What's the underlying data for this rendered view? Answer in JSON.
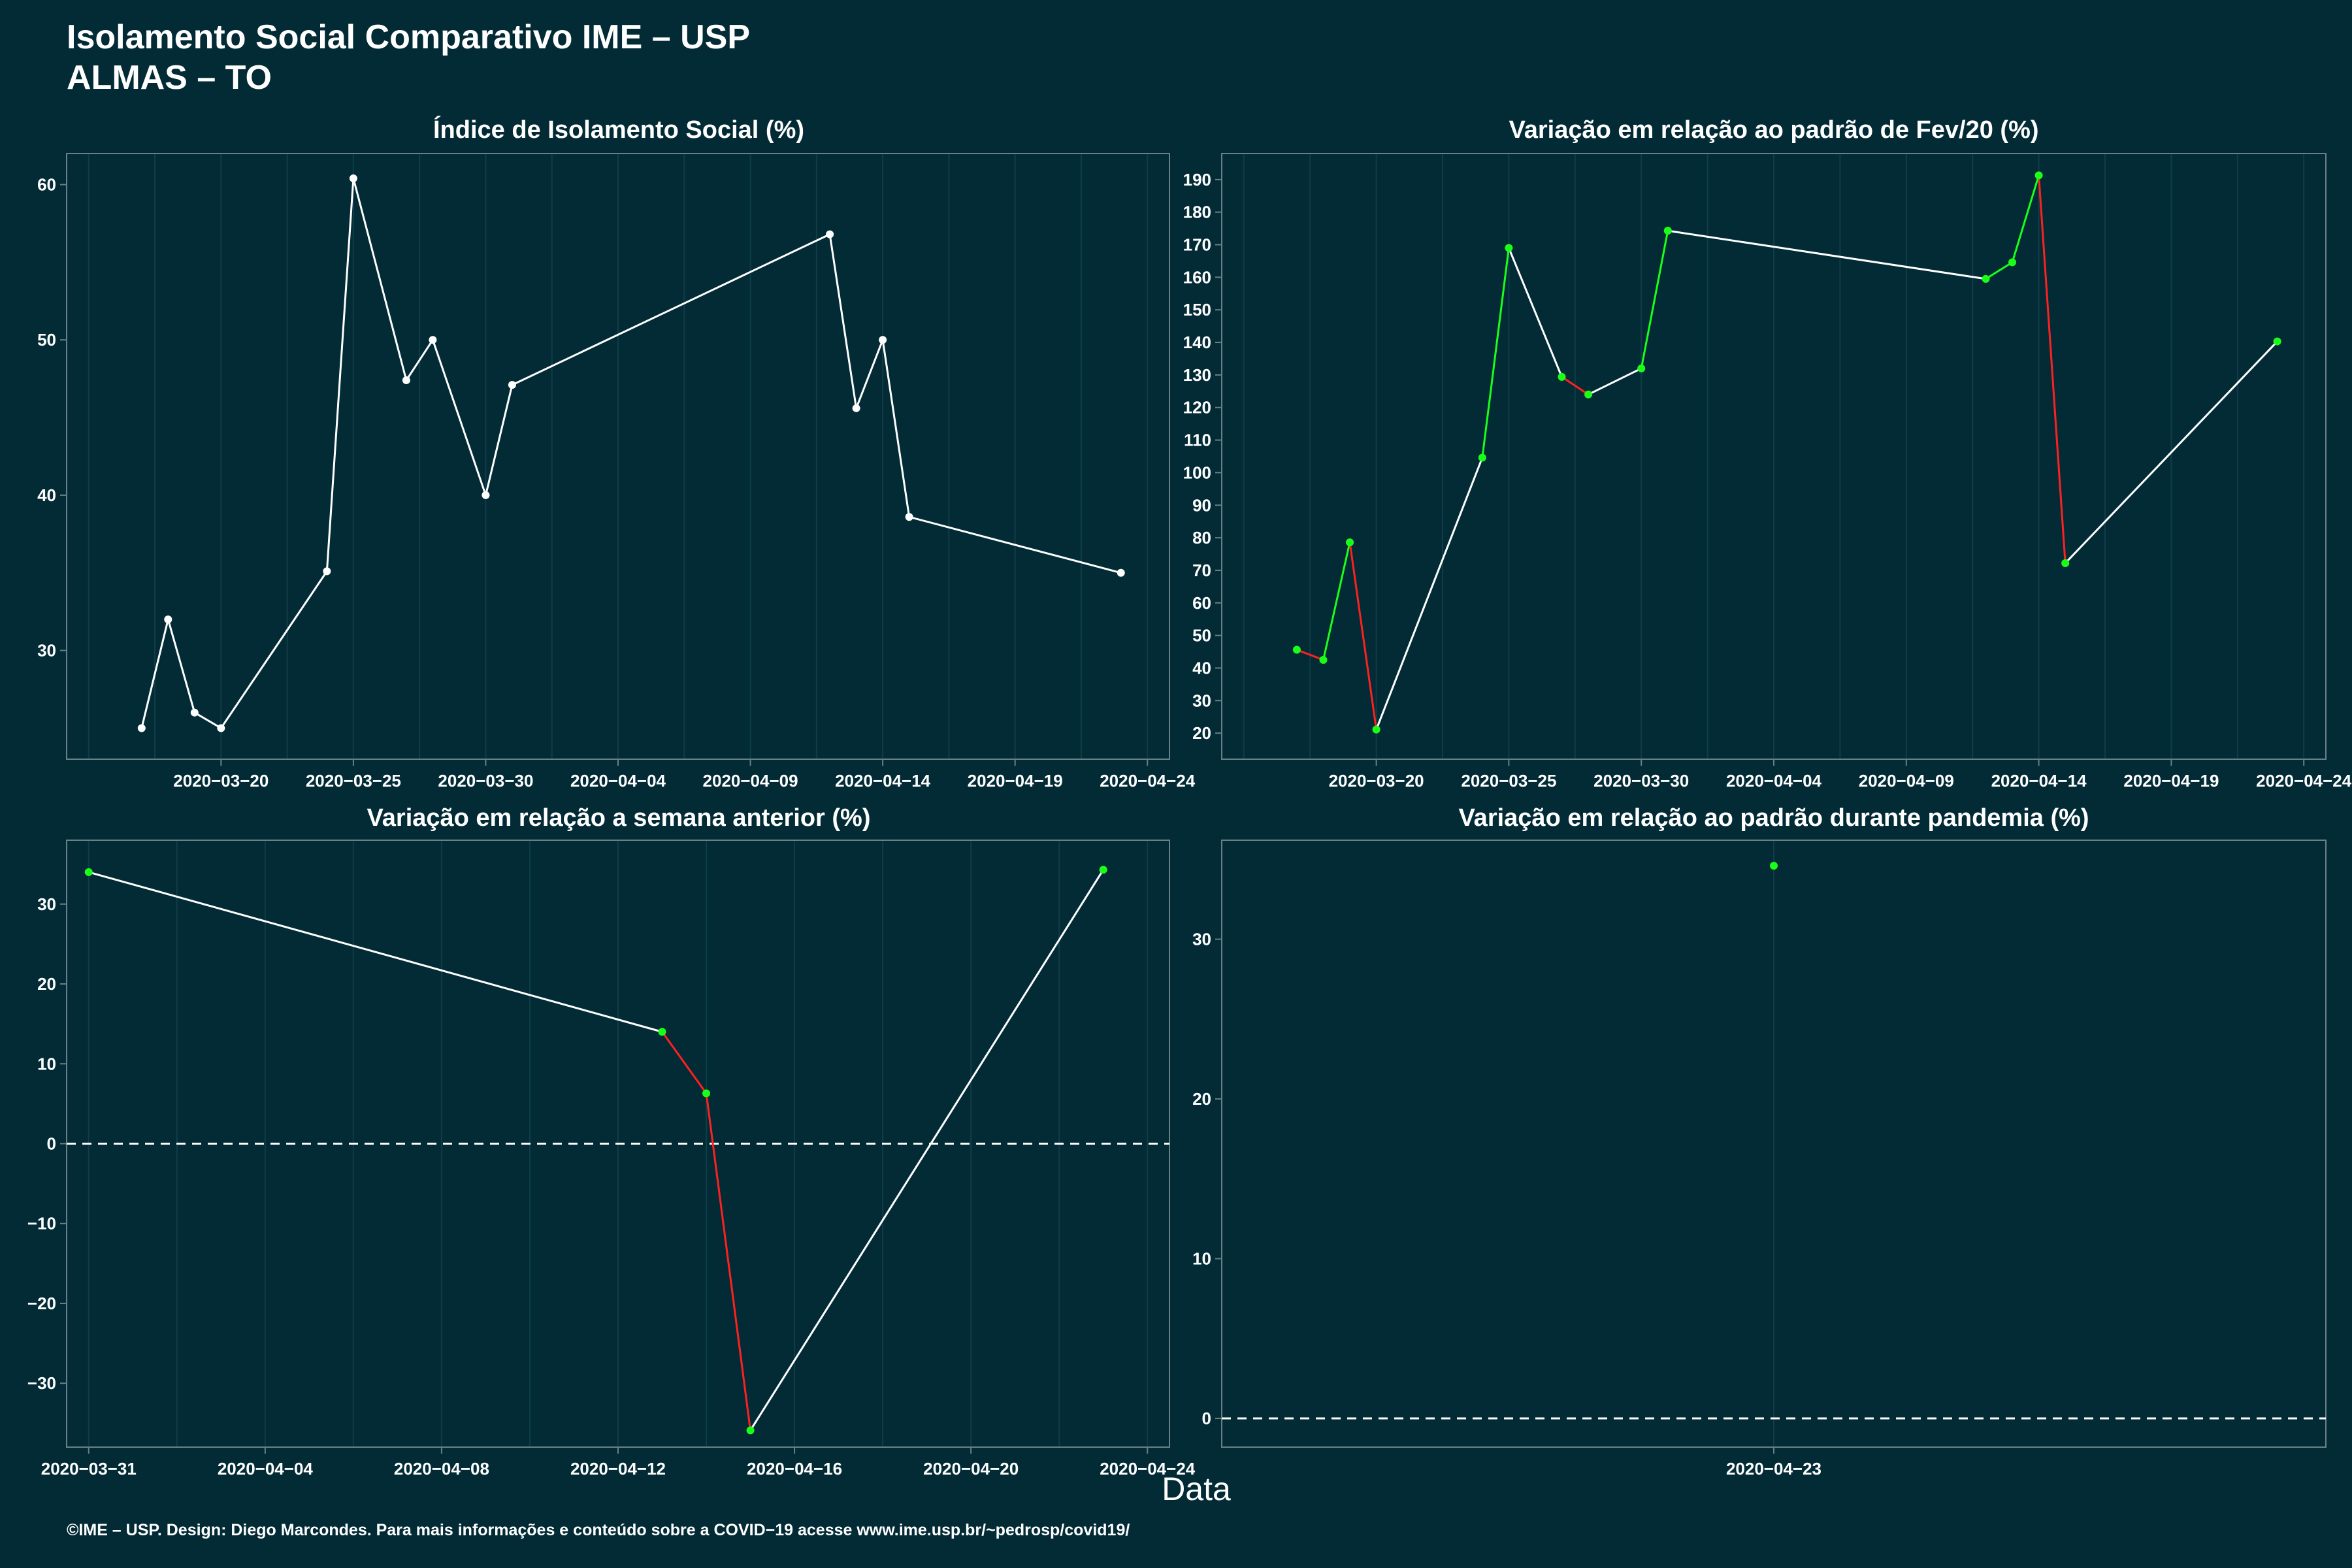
{
  "header": {
    "title_line1": "Isolamento Social Comparativo IME – USP",
    "title_line2": "ALMAS – TO"
  },
  "x_axis_label": "Data",
  "caption": "©IME – USP. Design: Diego Marcondes. Para mais informações e conteúdo sobre a COVID−19 acesse www.ime.usp.br/~pedrosp/covid19/",
  "colors": {
    "background": "#022b36",
    "line_neutral": "#ffffff",
    "positive": "#1aff1a",
    "negative": "#ff2020",
    "frame": "#6b7f86",
    "grid": "#0f3d48"
  },
  "chart_data": [
    {
      "id": "isolamento",
      "type": "line",
      "title": "Índice de Isolamento Social (%)",
      "xlim": [
        "2020-03-15",
        "2020-04-24"
      ],
      "ylim": [
        23,
        62
      ],
      "x_ticks": [
        "2020-03-20",
        "2020-03-25",
        "2020-03-30",
        "2020-04-04",
        "2020-04-09",
        "2020-04-14",
        "2020-04-19",
        "2020-04-24"
      ],
      "y_ticks": [
        30,
        40,
        50,
        60
      ],
      "points": [
        {
          "x": "2020-03-17",
          "y": 25.0
        },
        {
          "x": "2020-03-18",
          "y": 32.0
        },
        {
          "x": "2020-03-19",
          "y": 26.0
        },
        {
          "x": "2020-03-20",
          "y": 25.0
        },
        {
          "x": "2020-03-24",
          "y": 35.1
        },
        {
          "x": "2020-03-25",
          "y": 60.4
        },
        {
          "x": "2020-03-27",
          "y": 47.4
        },
        {
          "x": "2020-03-28",
          "y": 50.0
        },
        {
          "x": "2020-03-30",
          "y": 40.0
        },
        {
          "x": "2020-03-31",
          "y": 47.1
        },
        {
          "x": "2020-04-12",
          "y": 56.8
        },
        {
          "x": "2020-04-13",
          "y": 45.6
        },
        {
          "x": "2020-04-14",
          "y": 50.0
        },
        {
          "x": "2020-04-15",
          "y": 38.6
        },
        {
          "x": "2020-04-23",
          "y": 35.0
        }
      ]
    },
    {
      "id": "fev20",
      "type": "line",
      "title": "Variação em relação ao padrão de Fev/20 (%)",
      "xlim": [
        "2020-03-15",
        "2020-04-24"
      ],
      "ylim": [
        12,
        198
      ],
      "x_ticks": [
        "2020-03-20",
        "2020-03-25",
        "2020-03-30",
        "2020-04-04",
        "2020-04-09",
        "2020-04-14",
        "2020-04-19",
        "2020-04-24"
      ],
      "y_ticks": [
        20,
        30,
        40,
        50,
        60,
        70,
        80,
        90,
        100,
        110,
        120,
        130,
        140,
        150,
        160,
        170,
        180,
        190
      ],
      "points": [
        {
          "x": "2020-03-17",
          "y": 45.6
        },
        {
          "x": "2020-03-18",
          "y": 42.5
        },
        {
          "x": "2020-03-19",
          "y": 78.6
        },
        {
          "x": "2020-03-20",
          "y": 21.1
        },
        {
          "x": "2020-03-24",
          "y": 104.6
        },
        {
          "x": "2020-03-25",
          "y": 169.0
        },
        {
          "x": "2020-03-27",
          "y": 129.4
        },
        {
          "x": "2020-03-28",
          "y": 124.0
        },
        {
          "x": "2020-03-30",
          "y": 132.0
        },
        {
          "x": "2020-03-31",
          "y": 174.3
        },
        {
          "x": "2020-04-12",
          "y": 159.5
        },
        {
          "x": "2020-04-13",
          "y": 164.6
        },
        {
          "x": "2020-04-14",
          "y": 191.3
        },
        {
          "x": "2020-04-15",
          "y": 72.2
        },
        {
          "x": "2020-04-23",
          "y": 140.3
        }
      ]
    },
    {
      "id": "semana",
      "type": "line",
      "title": "Variação em relação a semana anterior (%)",
      "xlim": [
        "2020-03-31",
        "2020-04-24"
      ],
      "ylim": [
        -38,
        38
      ],
      "x_ticks": [
        "2020-03-31",
        "2020-04-04",
        "2020-04-08",
        "2020-04-12",
        "2020-04-16",
        "2020-04-20",
        "2020-04-24"
      ],
      "y_ticks": [
        -30,
        -20,
        -10,
        0,
        10,
        20,
        30
      ],
      "zero_line": true,
      "points": [
        {
          "x": "2020-03-31",
          "y": 34.0
        },
        {
          "x": "2020-04-13",
          "y": 14.0
        },
        {
          "x": "2020-04-14",
          "y": 6.3
        },
        {
          "x": "2020-04-15",
          "y": -35.9
        },
        {
          "x": "2020-04-23",
          "y": 34.3
        }
      ]
    },
    {
      "id": "pandemia",
      "type": "scatter",
      "title": "Variação em relação ao padrão durante pandemia (%)",
      "xlim": [
        "2020-04-23",
        "2020-04-23"
      ],
      "ylim": [
        -1.8,
        36.2
      ],
      "x_ticks": [
        "2020-04-23"
      ],
      "y_ticks": [
        0,
        10,
        20,
        30
      ],
      "zero_line": true,
      "points": [
        {
          "x": "2020-04-23",
          "y": 34.6
        }
      ]
    }
  ]
}
